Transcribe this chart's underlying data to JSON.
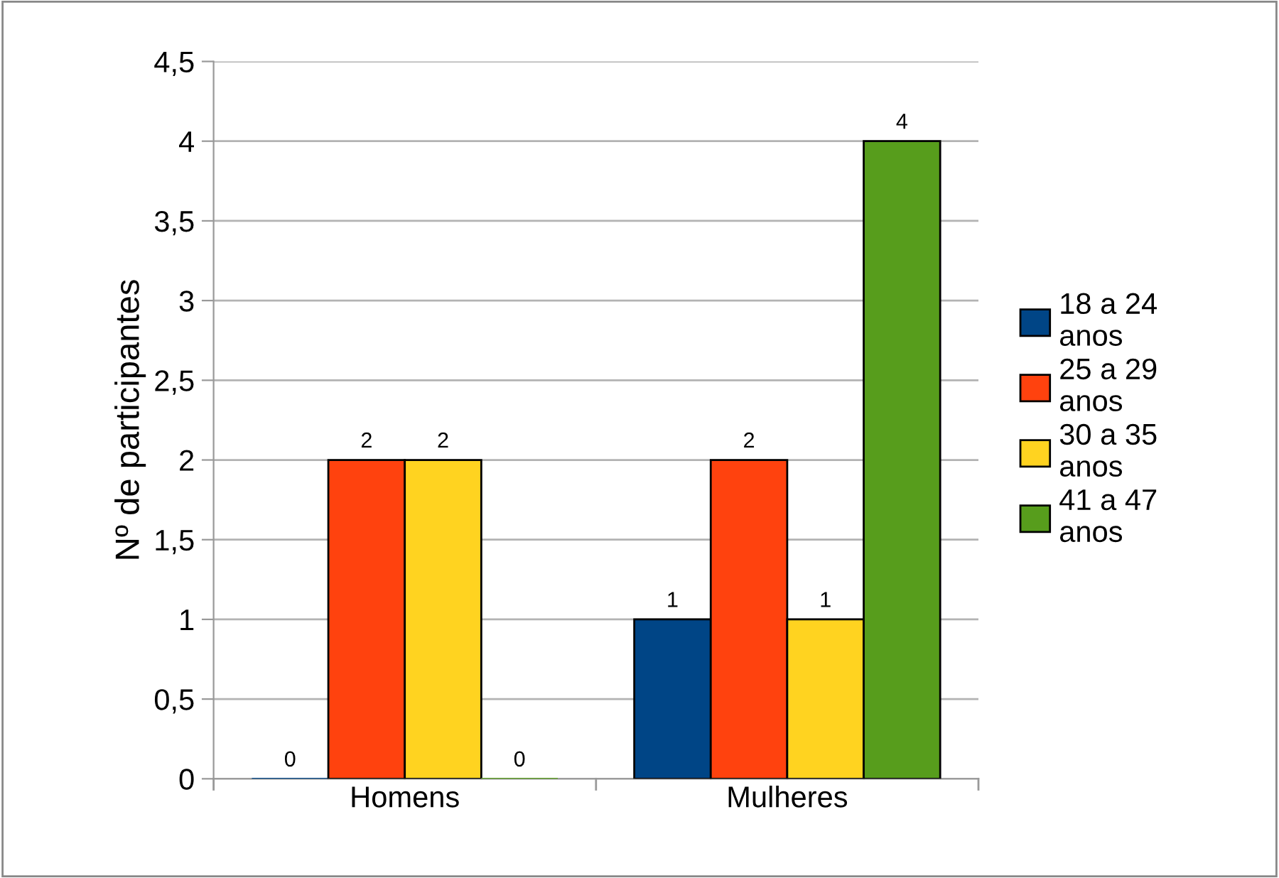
{
  "chart_data": {
    "type": "bar",
    "ylabel": "Nº de participantes",
    "categories": [
      "Homens",
      "Mulheres"
    ],
    "series": [
      {
        "name": "18 a 24 anos",
        "color": "#004586",
        "values": [
          0,
          1
        ]
      },
      {
        "name": "25 a 29 anos",
        "color": "#ff420e",
        "values": [
          2,
          2
        ]
      },
      {
        "name": "30 a 35 anos",
        "color": "#ffd320",
        "values": [
          2,
          1
        ]
      },
      {
        "name": "41 a 47 anos",
        "color": "#579d1c",
        "values": [
          0,
          4
        ]
      }
    ],
    "ylim": [
      0,
      4.5
    ],
    "yticks": [
      0,
      {
        "value": 0.5,
        "label": "0,5"
      },
      1,
      {
        "value": 1.5,
        "label": "1,5"
      },
      2,
      {
        "value": 2.5,
        "label": "2,5"
      },
      3,
      {
        "value": 3.5,
        "label": "3,5"
      },
      4,
      {
        "value": 4.5,
        "label": "4,5"
      }
    ],
    "grid": "y",
    "legend": "right",
    "data_labels": true
  }
}
